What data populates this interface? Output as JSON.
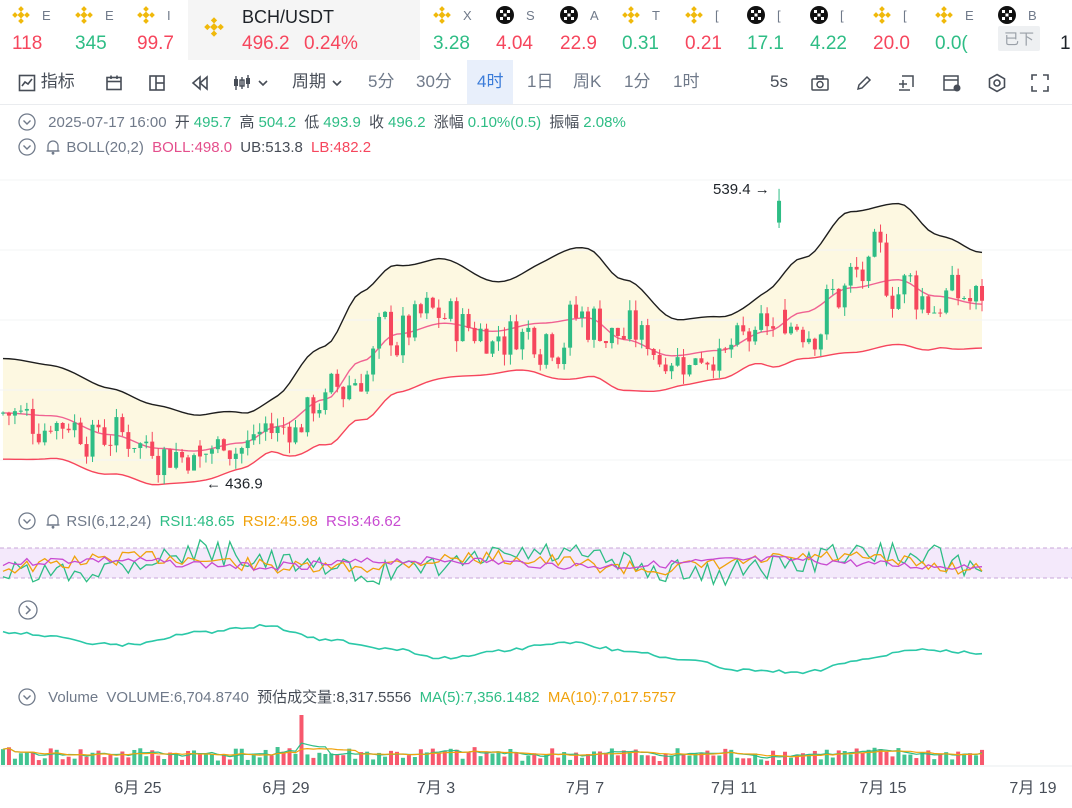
{
  "ticker": [
    {
      "symbol": "E",
      "value": "118",
      "dir": "down",
      "icon": "binance-icon"
    },
    {
      "symbol": "E",
      "value": "345",
      "dir": "up",
      "icon": "binance-icon"
    },
    {
      "symbol": "I",
      "value": "99.7",
      "dir": "down",
      "icon": "binance-icon"
    },
    {
      "symbol": "BCH/USDT",
      "value": "496.2",
      "change": "0.24%",
      "dir": "down",
      "icon": "binance-icon",
      "active": true
    },
    {
      "symbol": "X",
      "value": "3.28",
      "dir": "up",
      "icon": "binance-icon"
    },
    {
      "symbol": "S",
      "value": "4.04",
      "dir": "down",
      "icon": "okx-icon"
    },
    {
      "symbol": "A",
      "value": "22.9",
      "dir": "down",
      "icon": "okx-icon"
    },
    {
      "symbol": "T",
      "value": "0.31",
      "dir": "up",
      "icon": "binance-icon"
    },
    {
      "symbol": "[",
      "value": "0.21",
      "dir": "down",
      "icon": "binance-icon"
    },
    {
      "symbol": "[",
      "value": "17.1",
      "dir": "up",
      "icon": "okx-icon"
    },
    {
      "symbol": "[",
      "value": "4.22",
      "dir": "up",
      "icon": "okx-icon"
    },
    {
      "symbol": "[",
      "value": "20.0",
      "dir": "down",
      "icon": "binance-icon"
    },
    {
      "symbol": "E",
      "value": "0.0(",
      "dir": "up",
      "icon": "binance-icon"
    },
    {
      "symbol": "B",
      "value": "1",
      "dir": "neutral",
      "icon": "okx-icon",
      "badge": "已下"
    }
  ],
  "toolbar": {
    "indicators": "指标",
    "period": "周期",
    "intervals": [
      "5分",
      "30分",
      "4时",
      "1日",
      "周K",
      "1分",
      "1时"
    ],
    "active_interval": "4时",
    "refresh": "5s"
  },
  "ohlc": {
    "date": "2025-07-17 16:00",
    "open_label": "开",
    "open": "495.7",
    "high_label": "高",
    "high": "504.2",
    "low_label": "低",
    "low": "493.9",
    "close_label": "收",
    "close": "496.2",
    "change_label": "涨幅",
    "change": "0.10%(0.5)",
    "amp_label": "振幅",
    "amp": "2.08%"
  },
  "boll": {
    "name": "BOLL(20,2)",
    "mid": "BOLL:498.0",
    "ub": "UB:513.8",
    "lb": "LB:482.2"
  },
  "rsi": {
    "name": "RSI(6,12,24)",
    "r1": "RSI1:48.65",
    "r2": "RSI2:45.98",
    "r3": "RSI3:46.62"
  },
  "volume": {
    "name": "Volume",
    "value": "VOLUME:6,704.8740",
    "estimate": "预估成交量:8,317.5556",
    "ma5": "MA(5):7,356.1482",
    "ma10": "MA(10):7,017.5757"
  },
  "annotations": {
    "high": "539.4",
    "low": "436.9"
  },
  "colors": {
    "up": "#2ebd85",
    "down": "#f6465d",
    "upper_band": "#1e1e1e",
    "mid_band": "#f06292",
    "lower_band": "#f6465d",
    "band_fill": "#fdf8e1",
    "rsi1": "#2ebd85",
    "rsi2": "#f0a20c",
    "rsi3": "#c84ad1"
  },
  "chart_data": {
    "type": "candlestick",
    "x_ticks": [
      "6月 25",
      "6月 29",
      "7月 3",
      "7月 7",
      "7月 11",
      "7月 15",
      "7月 19"
    ],
    "candles_approx": [
      [
        448,
        452,
        446,
        450
      ],
      [
        450,
        453,
        444,
        446
      ],
      [
        446,
        449,
        440,
        447
      ],
      [
        447,
        451,
        443,
        445
      ],
      [
        445,
        448,
        441,
        444
      ],
      [
        444,
        448,
        438,
        446
      ],
      [
        446,
        450,
        442,
        443
      ],
      [
        443,
        447,
        437,
        445
      ],
      [
        445,
        449,
        440,
        442
      ],
      [
        442,
        446,
        436.9,
        444
      ],
      [
        444,
        450,
        441,
        448
      ],
      [
        448,
        452,
        443,
        445
      ],
      [
        445,
        455,
        444,
        452
      ],
      [
        452,
        456,
        447,
        449
      ],
      [
        449,
        462,
        448,
        460
      ],
      [
        460,
        468,
        457,
        465
      ],
      [
        465,
        474,
        462,
        470
      ],
      [
        470,
        480,
        466,
        477
      ],
      [
        477,
        484,
        473,
        480
      ],
      [
        480,
        486,
        476,
        483
      ],
      [
        483,
        489,
        479,
        486
      ],
      [
        486,
        490,
        480,
        482
      ],
      [
        482,
        488,
        478,
        485
      ],
      [
        485,
        492,
        481,
        489
      ],
      [
        489,
        494,
        484,
        486
      ],
      [
        486,
        490,
        480,
        484
      ],
      [
        484,
        488,
        479,
        482
      ],
      [
        482,
        487,
        478,
        485
      ],
      [
        485,
        489,
        481,
        483
      ],
      [
        483,
        488,
        480,
        486
      ],
      [
        486,
        491,
        482,
        489
      ],
      [
        489,
        495,
        486,
        493
      ],
      [
        493,
        500,
        490,
        498
      ],
      [
        498,
        508,
        495,
        505
      ],
      [
        505,
        514,
        501,
        510
      ],
      [
        510,
        516,
        503,
        506
      ],
      [
        506,
        511,
        498,
        501
      ],
      [
        501,
        506,
        494,
        497
      ],
      [
        497,
        503,
        493,
        500
      ],
      [
        500,
        505,
        495,
        498
      ],
      [
        498,
        503,
        492,
        494
      ],
      [
        494,
        498,
        487,
        490
      ],
      [
        490,
        494,
        480,
        484
      ],
      [
        484,
        488,
        476,
        479
      ],
      [
        479,
        484,
        470,
        475
      ],
      [
        475,
        481,
        472,
        478
      ],
      [
        478,
        484,
        474,
        480
      ],
      [
        480,
        485,
        476,
        482
      ],
      [
        482,
        486,
        478,
        484
      ],
      [
        484,
        489,
        481,
        487
      ],
      [
        487,
        492,
        484,
        490
      ],
      [
        490,
        494,
        486,
        492
      ],
      [
        492,
        496,
        488,
        494
      ],
      [
        494,
        498,
        490,
        496
      ],
      [
        496,
        500,
        492,
        497
      ],
      [
        497,
        503,
        494,
        501
      ],
      [
        501,
        507,
        498,
        505
      ],
      [
        505,
        511,
        502,
        508
      ],
      [
        508,
        515,
        505,
        512
      ],
      [
        512,
        518,
        508,
        515
      ],
      [
        515,
        522,
        511,
        519
      ],
      [
        519,
        526,
        515,
        523
      ],
      [
        523,
        532,
        520,
        530
      ],
      [
        530,
        539.4,
        527,
        535
      ],
      [
        535,
        538,
        522,
        525
      ],
      [
        525,
        528,
        508,
        511
      ],
      [
        511,
        514,
        502,
        506
      ],
      [
        506,
        510,
        500,
        504
      ],
      [
        504,
        510,
        501,
        507
      ],
      [
        507,
        512,
        503,
        509
      ],
      [
        509,
        512,
        495,
        498
      ],
      [
        498,
        502,
        490,
        494
      ],
      [
        494,
        499,
        488,
        496
      ],
      [
        496,
        502,
        492,
        499
      ],
      [
        499,
        504,
        495,
        496
      ]
    ]
  }
}
